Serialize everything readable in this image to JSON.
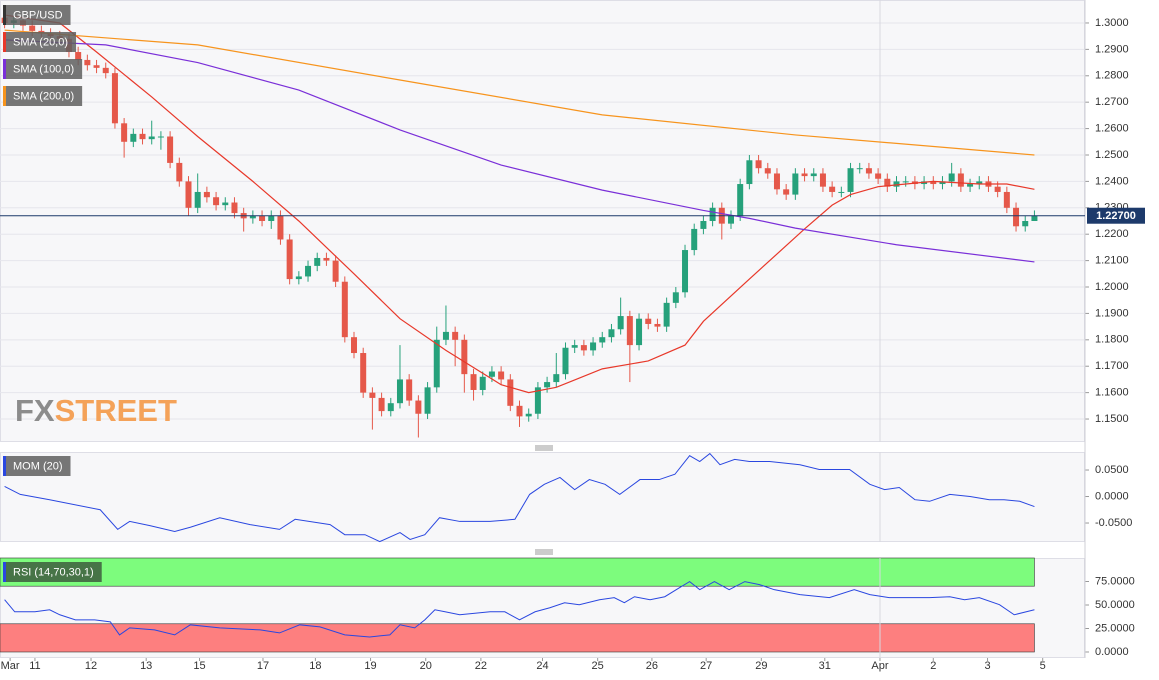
{
  "chart_data": [
    {
      "type": "candlestick",
      "title": "GBP/USD",
      "up_color": "#26a17b",
      "down_color": "#e5584a",
      "xlim": [
        -0.5,
        117.5
      ],
      "xticks": [
        {
          "value": 0.6,
          "label": "Mar"
        },
        {
          "value": 3.3,
          "label": "11"
        },
        {
          "value": 9.4,
          "label": "12"
        },
        {
          "value": 15.4,
          "label": "13"
        },
        {
          "value": 21.2,
          "label": "15"
        },
        {
          "value": 28.1,
          "label": "17"
        },
        {
          "value": 33.8,
          "label": "18"
        },
        {
          "value": 39.8,
          "label": "19"
        },
        {
          "value": 45.8,
          "label": "20"
        },
        {
          "value": 51.8,
          "label": "22"
        },
        {
          "value": 58.5,
          "label": "24"
        },
        {
          "value": 64.5,
          "label": "25"
        },
        {
          "value": 70.4,
          "label": "26"
        },
        {
          "value": 76.3,
          "label": "27"
        },
        {
          "value": 82.3,
          "label": "29"
        },
        {
          "value": 89.2,
          "label": "31"
        },
        {
          "value": 95.2,
          "label": "Apr"
        },
        {
          "value": 101,
          "label": "2"
        },
        {
          "value": 106.9,
          "label": "3"
        },
        {
          "value": 112.9,
          "label": "5"
        }
      ],
      "ylim": [
        1.1413,
        1.3087
      ],
      "yticks": [
        {
          "value": 1.3,
          "label": "1.3000"
        },
        {
          "value": 1.29,
          "label": "1.2900"
        },
        {
          "value": 1.28,
          "label": "1.2800"
        },
        {
          "value": 1.27,
          "label": "1.2700"
        },
        {
          "value": 1.26,
          "label": "1.2600"
        },
        {
          "value": 1.25,
          "label": "1.2500"
        },
        {
          "value": 1.24,
          "label": "1.2400"
        },
        {
          "value": 1.23,
          "label": "1.2300"
        },
        {
          "value": 1.22,
          "label": "1.2200"
        },
        {
          "value": 1.21,
          "label": "1.2100"
        },
        {
          "value": 1.2,
          "label": "1.2000"
        },
        {
          "value": 1.19,
          "label": "1.1900"
        },
        {
          "value": 1.18,
          "label": "1.1800"
        },
        {
          "value": 1.17,
          "label": "1.1700"
        },
        {
          "value": 1.16,
          "label": "1.1600"
        },
        {
          "value": 1.15,
          "label": "1.1500"
        }
      ],
      "grid": true,
      "last_price": {
        "value": 1.227,
        "label": "1.22700"
      },
      "watermark": [
        "FX",
        "STREET"
      ],
      "open": [
        1.302,
        1.3,
        1.301,
        1.299,
        1.297,
        1.296,
        1.295,
        1.294,
        1.289,
        1.286,
        1.284,
        1.283,
        1.281,
        1.262,
        1.255,
        1.258,
        1.256,
        1.257,
        1.257,
        1.247,
        1.24,
        1.23,
        1.236,
        1.234,
        1.231,
        1.232,
        1.228,
        1.226,
        1.227,
        1.225,
        1.227,
        1.218,
        1.203,
        1.204,
        1.208,
        1.211,
        1.21,
        1.202,
        1.181,
        1.175,
        1.16,
        1.158,
        1.153,
        1.156,
        1.165,
        1.157,
        1.152,
        1.162,
        1.18,
        1.183,
        1.18,
        1.167,
        1.161,
        1.166,
        1.168,
        1.165,
        1.155,
        1.151,
        1.152,
        1.162,
        1.164,
        1.167,
        1.177,
        1.178,
        1.176,
        1.179,
        1.181,
        1.184,
        1.189,
        1.178,
        1.188,
        1.186,
        1.185,
        1.194,
        1.198,
        1.214,
        1.222,
        1.225,
        1.23,
        1.224,
        1.227,
        1.239,
        1.248,
        1.245,
        1.243,
        1.237,
        1.235,
        1.243,
        1.242,
        1.243,
        1.238,
        1.236,
        1.236,
        1.245,
        1.245,
        1.243,
        1.241,
        1.238,
        1.24,
        1.24,
        1.239,
        1.24,
        1.239,
        1.24,
        1.243,
        1.238,
        1.239,
        1.24,
        1.238,
        1.236,
        1.23,
        1.223,
        1.225
      ],
      "high": [
        1.304,
        1.303,
        1.303,
        1.301,
        1.299,
        1.298,
        1.297,
        1.296,
        1.291,
        1.288,
        1.286,
        1.285,
        1.283,
        1.264,
        1.26,
        1.26,
        1.263,
        1.259,
        1.259,
        1.249,
        1.242,
        1.243,
        1.238,
        1.236,
        1.234,
        1.234,
        1.23,
        1.229,
        1.229,
        1.229,
        1.229,
        1.22,
        1.206,
        1.21,
        1.213,
        1.213,
        1.212,
        1.204,
        1.183,
        1.177,
        1.162,
        1.16,
        1.158,
        1.178,
        1.167,
        1.159,
        1.164,
        1.185,
        1.193,
        1.185,
        1.182,
        1.169,
        1.168,
        1.17,
        1.17,
        1.167,
        1.157,
        1.154,
        1.164,
        1.166,
        1.175,
        1.179,
        1.18,
        1.18,
        1.181,
        1.183,
        1.186,
        1.196,
        1.191,
        1.19,
        1.19,
        1.188,
        1.196,
        1.2,
        1.216,
        1.224,
        1.227,
        1.232,
        1.232,
        1.229,
        1.241,
        1.25,
        1.25,
        1.247,
        1.245,
        1.239,
        1.245,
        1.245,
        1.245,
        1.245,
        1.24,
        1.238,
        1.247,
        1.247,
        1.247,
        1.245,
        1.243,
        1.242,
        1.242,
        1.242,
        1.242,
        1.242,
        1.242,
        1.247,
        1.245,
        1.241,
        1.242,
        1.242,
        1.24,
        1.238,
        1.232,
        1.227,
        1.229
      ],
      "low": [
        1.298,
        1.298,
        1.297,
        1.295,
        1.294,
        1.293,
        1.292,
        1.287,
        1.284,
        1.282,
        1.281,
        1.279,
        1.26,
        1.249,
        1.253,
        1.254,
        1.254,
        1.252,
        1.245,
        1.238,
        1.227,
        1.228,
        1.232,
        1.229,
        1.229,
        1.226,
        1.221,
        1.224,
        1.223,
        1.222,
        1.216,
        1.201,
        1.201,
        1.202,
        1.206,
        1.208,
        1.2,
        1.179,
        1.173,
        1.158,
        1.146,
        1.151,
        1.151,
        1.154,
        1.155,
        1.143,
        1.15,
        1.16,
        1.178,
        1.17,
        1.16,
        1.157,
        1.159,
        1.164,
        1.163,
        1.153,
        1.147,
        1.149,
        1.15,
        1.16,
        1.162,
        1.165,
        1.175,
        1.174,
        1.174,
        1.177,
        1.179,
        1.182,
        1.164,
        1.176,
        1.184,
        1.183,
        1.183,
        1.192,
        1.196,
        1.212,
        1.22,
        1.223,
        1.218,
        1.222,
        1.225,
        1.237,
        1.243,
        1.241,
        1.235,
        1.233,
        1.233,
        1.24,
        1.24,
        1.236,
        1.234,
        1.234,
        1.234,
        1.243,
        1.241,
        1.239,
        1.236,
        1.236,
        1.238,
        1.237,
        1.237,
        1.237,
        1.237,
        1.238,
        1.236,
        1.236,
        1.237,
        1.236,
        1.234,
        1.228,
        1.221,
        1.221,
        1.225
      ],
      "close": [
        1.3,
        1.301,
        1.299,
        1.297,
        1.296,
        1.295,
        1.294,
        1.289,
        1.286,
        1.284,
        1.283,
        1.281,
        1.262,
        1.255,
        1.258,
        1.256,
        1.257,
        1.257,
        1.247,
        1.24,
        1.23,
        1.236,
        1.234,
        1.231,
        1.232,
        1.228,
        1.226,
        1.227,
        1.225,
        1.227,
        1.218,
        1.203,
        1.204,
        1.208,
        1.211,
        1.21,
        1.202,
        1.181,
        1.175,
        1.16,
        1.158,
        1.153,
        1.156,
        1.165,
        1.157,
        1.152,
        1.162,
        1.18,
        1.183,
        1.18,
        1.167,
        1.161,
        1.166,
        1.168,
        1.165,
        1.155,
        1.151,
        1.152,
        1.162,
        1.164,
        1.167,
        1.177,
        1.178,
        1.176,
        1.179,
        1.181,
        1.184,
        1.189,
        1.178,
        1.188,
        1.186,
        1.185,
        1.194,
        1.198,
        1.214,
        1.222,
        1.225,
        1.23,
        1.224,
        1.227,
        1.239,
        1.248,
        1.245,
        1.243,
        1.237,
        1.235,
        1.243,
        1.242,
        1.243,
        1.238,
        1.236,
        1.236,
        1.245,
        1.245,
        1.243,
        1.241,
        1.238,
        1.24,
        1.24,
        1.239,
        1.24,
        1.239,
        1.24,
        1.243,
        1.238,
        1.239,
        1.24,
        1.238,
        1.236,
        1.23,
        1.223,
        1.225,
        1.227
      ],
      "series": [
        {
          "name": "SMA (20,0)",
          "color": "#e8382a",
          "x": [
            0,
            6,
            10,
            16,
            21,
            27,
            32,
            38,
            43,
            48,
            54,
            57,
            60,
            65,
            70,
            74,
            76,
            81,
            87,
            90,
            92,
            95,
            101,
            106,
            109,
            112
          ],
          "values": [
            1.303,
            1.3,
            1.289,
            1.272,
            1.257,
            1.24,
            1.225,
            1.205,
            1.188,
            1.176,
            1.163,
            1.16,
            1.162,
            1.169,
            1.172,
            1.178,
            1.187,
            1.203,
            1.222,
            1.231,
            1.235,
            1.238,
            1.24,
            1.239,
            1.239,
            1.237
          ]
        },
        {
          "name": "SMA (100,0)",
          "color": "#7a2fd8",
          "x": [
            0,
            11,
            21,
            32,
            43,
            54,
            65,
            76,
            81,
            86,
            97,
            112
          ],
          "values": [
            1.2936,
            1.2917,
            1.285,
            1.2746,
            1.2595,
            1.2462,
            1.2367,
            1.229,
            1.226,
            1.2223,
            1.216,
            1.2095
          ]
        },
        {
          "name": "SMA (200,0)",
          "color": "#f7941d",
          "x": [
            0,
            21,
            43,
            65,
            86,
            112
          ],
          "values": [
            1.2973,
            1.2917,
            1.2784,
            1.2652,
            1.2576,
            1.25
          ]
        }
      ]
    },
    {
      "type": "line",
      "title": "MOM (20)",
      "color": "#2a47e0",
      "ylim": [
        -0.0858,
        0.084
      ],
      "yticks": [
        {
          "value": 0.05,
          "label": "0.0500"
        },
        {
          "value": 0,
          "label": "0.0000"
        },
        {
          "value": -0.05,
          "label": "-0.0500"
        }
      ],
      "x": [
        0,
        1.7,
        4.9,
        10.4,
        12.3,
        13.6,
        15.8,
        18.5,
        20.2,
        23.4,
        26.7,
        29.9,
        31.6,
        35.4,
        37,
        39.2,
        40.8,
        43,
        44.1,
        45.7,
        47.3,
        49.5,
        52.8,
        55.5,
        57.1,
        58.7,
        60.4,
        62,
        63.6,
        65.3,
        66.9,
        69.1,
        71.2,
        72.9,
        74.5,
        75.6,
        76.7,
        77.8,
        79.4,
        81,
        83.2,
        86.5,
        88.6,
        91.9,
        94.1,
        95.7,
        97.3,
        99,
        100.6,
        102.8,
        105,
        107.1,
        108.7,
        110.4,
        112
      ],
      "values": [
        0.019,
        0.004,
        -0.006,
        -0.025,
        -0.062,
        -0.047,
        -0.055,
        -0.066,
        -0.058,
        -0.04,
        -0.053,
        -0.062,
        -0.043,
        -0.053,
        -0.072,
        -0.072,
        -0.085,
        -0.068,
        -0.081,
        -0.072,
        -0.04,
        -0.047,
        -0.047,
        -0.043,
        0.004,
        0.023,
        0.036,
        0.013,
        0.032,
        0.023,
        0.004,
        0.032,
        0.032,
        0.042,
        0.077,
        0.066,
        0.081,
        0.06,
        0.07,
        0.066,
        0.066,
        0.06,
        0.051,
        0.051,
        0.023,
        0.013,
        0.017,
        -0.006,
        -0.009,
        0.004,
        0,
        -0.006,
        -0.006,
        -0.009,
        -0.019
      ]
    },
    {
      "type": "line",
      "title": "RSI (14,70,30,1)",
      "color": "#2a47e0",
      "ylim": [
        -6.4,
        100
      ],
      "yticks": [
        {
          "value": 75,
          "label": "75.0000"
        },
        {
          "value": 50,
          "label": "50.0000"
        },
        {
          "value": 25,
          "label": "25.0000"
        },
        {
          "value": 0,
          "label": "0.0000"
        }
      ],
      "bands": [
        {
          "from": 70,
          "to": 100,
          "color": "#7dfc7d"
        },
        {
          "from": 0,
          "to": 30,
          "color": "#fd7f7f"
        }
      ],
      "x": [
        0,
        1.1,
        3.3,
        4.9,
        6,
        7.7,
        9.8,
        11.5,
        12.5,
        13.6,
        16.3,
        18.5,
        20.2,
        23.4,
        27.8,
        29.9,
        32.1,
        34.3,
        37,
        39.7,
        41.9,
        43,
        44.6,
        45.7,
        46.8,
        47.9,
        49.5,
        52.8,
        54.4,
        56,
        57.7,
        59.3,
        60.9,
        62.5,
        64.7,
        66.3,
        67.4,
        68.5,
        70.2,
        71.8,
        73.4,
        74.5,
        75.6,
        77.2,
        78.8,
        80.5,
        82.1,
        83.7,
        86.5,
        89.7,
        92.4,
        94.1,
        96.2,
        98.4,
        100.6,
        102.8,
        104.4,
        106,
        108.2,
        109.8,
        112
      ],
      "values": [
        55.6,
        42.8,
        42.8,
        44.9,
        39.6,
        34.2,
        34.2,
        32.1,
        18.2,
        25.7,
        23.5,
        18.2,
        28.9,
        25.7,
        23.5,
        20.3,
        28.9,
        26.7,
        18.2,
        16,
        18.2,
        28.9,
        25.7,
        34.2,
        44.9,
        42.8,
        39.6,
        42.8,
        42.8,
        34.2,
        42.8,
        47.1,
        52.4,
        50.3,
        55.6,
        57.8,
        52.4,
        58.8,
        55.6,
        58.8,
        68.4,
        74.9,
        66.3,
        74.9,
        66.3,
        74.9,
        71.7,
        66.3,
        61,
        57.8,
        66.3,
        61,
        57.8,
        57.8,
        57.8,
        58.8,
        55.6,
        57.8,
        50.3,
        39.6,
        44.9
      ]
    }
  ]
}
